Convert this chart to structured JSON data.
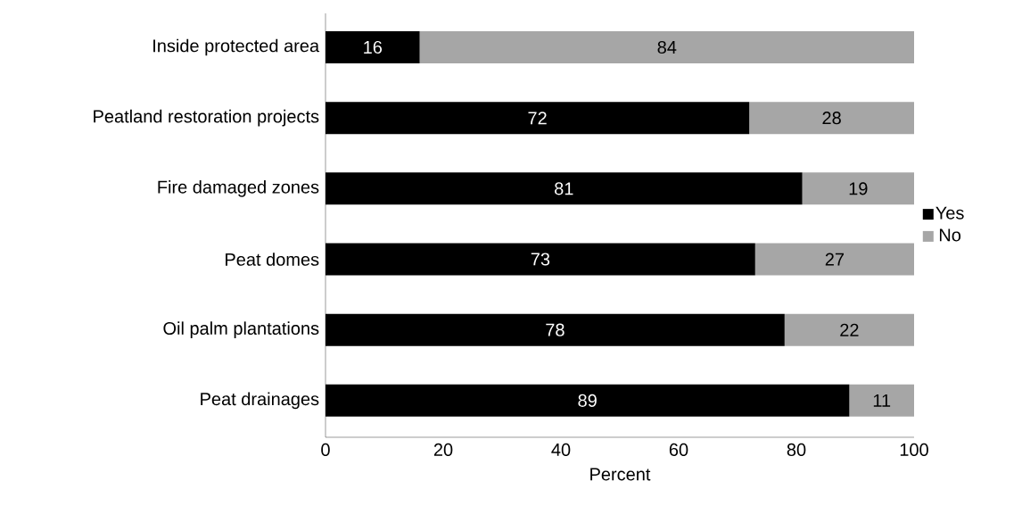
{
  "chart_data": {
    "type": "bar",
    "orientation": "horizontal",
    "stacked": true,
    "categories": [
      "Inside protected area",
      "Peatland restoration projects",
      "Fire damaged zones",
      "Peat domes",
      "Oil palm plantations",
      "Peat drainages"
    ],
    "series": [
      {
        "name": "Yes",
        "color": "#000000",
        "values": [
          16,
          72,
          81,
          73,
          78,
          89
        ]
      },
      {
        "name": "No",
        "color": "#a6a6a6",
        "values": [
          84,
          28,
          19,
          27,
          22,
          11
        ]
      }
    ],
    "xlabel": "Percent",
    "xlim": [
      0,
      100
    ],
    "xticks": [
      0,
      20,
      40,
      60,
      80,
      100
    ],
    "data_labels": true,
    "legend": "right",
    "grid": false
  }
}
